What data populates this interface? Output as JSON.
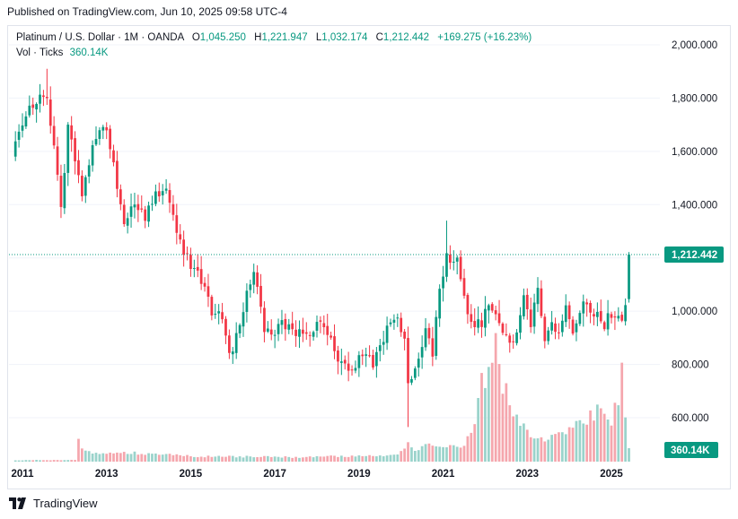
{
  "published": "Published on TradingView.com, Jun 10, 2025 09:58 UTC-4",
  "legend": {
    "symbol": "Platinum / U.S. Dollar · 1M · OANDA",
    "o_label": "O",
    "o_value": "1,045.250",
    "h_label": "H",
    "h_value": "1,221.947",
    "l_label": "L",
    "l_value": "1,032.174",
    "c_label": "C",
    "c_value": "1,212.442",
    "change": "+169.275 (+16.23%)"
  },
  "volume_legend": {
    "label": "Vol · Ticks",
    "value": "360.14K"
  },
  "footer": {
    "brand": "TradingView"
  },
  "colors": {
    "up": "#089981",
    "down": "#f23645",
    "up_vol": "#9ad3cb",
    "down_vol": "#f5a6ad"
  },
  "chart_data": {
    "type": "candlestick",
    "interval": "1M",
    "x_start": "2010-11",
    "x_end": "2025-06",
    "price_axis": {
      "ticks": [
        600,
        800,
        1000,
        1200,
        1400,
        1600,
        1800,
        2000
      ],
      "tick_labels": [
        "600.000",
        "800.000",
        "1,000.000",
        "1,400.000",
        "1,600.000",
        "1,800.000",
        "2,000.000"
      ],
      "ylim": [
        470,
        2040
      ]
    },
    "x_axis": {
      "tick_labels": [
        "2011",
        "2013",
        "2015",
        "2017",
        "2019",
        "2021",
        "2023",
        "2025"
      ]
    },
    "last_price": 1212.442,
    "last_price_label": "1,212.442",
    "last_volume_label": "360.14K",
    "close_anchors": [
      [
        "2010-11",
        1660
      ],
      [
        "2011-03",
        1770
      ],
      [
        "2011-08",
        1820
      ],
      [
        "2011-12",
        1380
      ],
      [
        "2012-02",
        1700
      ],
      [
        "2012-06",
        1430
      ],
      [
        "2012-09",
        1640
      ],
      [
        "2013-01",
        1690
      ],
      [
        "2013-06",
        1330
      ],
      [
        "2013-09",
        1400
      ],
      [
        "2013-12",
        1360
      ],
      [
        "2014-03",
        1430
      ],
      [
        "2014-06",
        1480
      ],
      [
        "2014-09",
        1300
      ],
      [
        "2014-12",
        1200
      ],
      [
        "2015-03",
        1140
      ],
      [
        "2015-07",
        1000
      ],
      [
        "2015-10",
        980
      ],
      [
        "2015-12",
        860
      ],
      [
        "2016-01",
        870
      ],
      [
        "2016-04",
        1010
      ],
      [
        "2016-07",
        1160
      ],
      [
        "2016-10",
        930
      ],
      [
        "2016-12",
        910
      ],
      [
        "2017-03",
        960
      ],
      [
        "2017-06",
        920
      ],
      [
        "2017-09",
        920
      ],
      [
        "2017-12",
        930
      ],
      [
        "2018-02",
        980
      ],
      [
        "2018-05",
        900
      ],
      [
        "2018-08",
        790
      ],
      [
        "2018-12",
        795
      ],
      [
        "2019-02",
        830
      ],
      [
        "2019-05",
        800
      ],
      [
        "2019-09",
        940
      ],
      [
        "2019-12",
        965
      ],
      [
        "2020-02",
        910
      ],
      [
        "2020-03",
        730
      ],
      [
        "2020-06",
        830
      ],
      [
        "2020-08",
        930
      ],
      [
        "2020-10",
        850
      ],
      [
        "2020-12",
        1070
      ],
      [
        "2021-02",
        1200
      ],
      [
        "2021-05",
        1190
      ],
      [
        "2021-07",
        1040
      ],
      [
        "2021-09",
        960
      ],
      [
        "2021-12",
        960
      ],
      [
        "2022-02",
        1040
      ],
      [
        "2022-03",
        990
      ],
      [
        "2022-05",
        950
      ],
      [
        "2022-08",
        880
      ],
      [
        "2022-10",
        920
      ],
      [
        "2022-12",
        1070
      ],
      [
        "2023-02",
        950
      ],
      [
        "2023-04",
        1080
      ],
      [
        "2023-06",
        910
      ],
      [
        "2023-08",
        960
      ],
      [
        "2023-10",
        900
      ],
      [
        "2023-12",
        1000
      ],
      [
        "2024-02",
        900
      ],
      [
        "2024-05",
        1030
      ],
      [
        "2024-07",
        980
      ],
      [
        "2024-09",
        980
      ],
      [
        "2024-11",
        950
      ],
      [
        "2025-01",
        990
      ],
      [
        "2025-03",
        1000
      ],
      [
        "2025-04",
        970
      ],
      [
        "2025-05",
        1045
      ],
      [
        "2025-06",
        1212.442
      ]
    ],
    "volume_anchors": [
      [
        "2010-11",
        3
      ],
      [
        "2012-04",
        4
      ],
      [
        "2012-05",
        45
      ],
      [
        "2012-06",
        30
      ],
      [
        "2012-08",
        20
      ],
      [
        "2013-06",
        20
      ],
      [
        "2015-02",
        12
      ],
      [
        "2017-06",
        10
      ],
      [
        "2019-12",
        14
      ],
      [
        "2020-03",
        45
      ],
      [
        "2020-05",
        25
      ],
      [
        "2020-08",
        40
      ],
      [
        "2021-01",
        28
      ],
      [
        "2021-06",
        35
      ],
      [
        "2021-10",
        70
      ],
      [
        "2021-12",
        170
      ],
      [
        "2022-02",
        235
      ],
      [
        "2022-04",
        255
      ],
      [
        "2022-06",
        185
      ],
      [
        "2022-09",
        110
      ],
      [
        "2022-12",
        75
      ],
      [
        "2023-03",
        60
      ],
      [
        "2023-06",
        45
      ],
      [
        "2023-09",
        55
      ],
      [
        "2023-12",
        65
      ],
      [
        "2024-03",
        90
      ],
      [
        "2024-06",
        100
      ],
      [
        "2024-09",
        110
      ],
      [
        "2024-12",
        90
      ],
      [
        "2025-03",
        120
      ],
      [
        "2025-04",
        225
      ],
      [
        "2025-05",
        110
      ],
      [
        "2025-06",
        30
      ]
    ]
  }
}
